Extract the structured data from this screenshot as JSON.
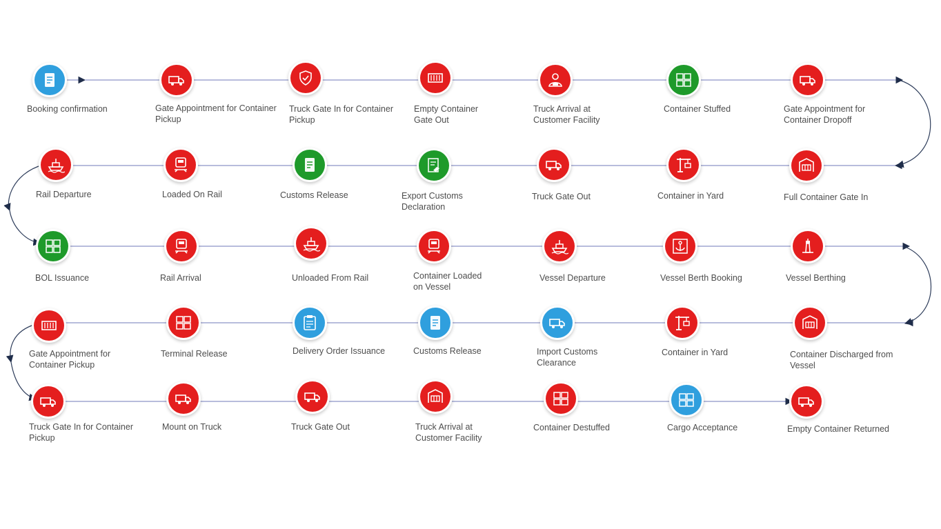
{
  "colors": {
    "red": "#e41e1e",
    "green": "#1e9a2a",
    "blue": "#2f9fde",
    "line": "#8c94c8"
  },
  "steps": [
    {
      "label": "Booking confirmation",
      "color": "blue",
      "icon": "document-icon"
    },
    {
      "label": "Gate Appointment for Container\nPickup",
      "color": "red",
      "icon": "truck-icon"
    },
    {
      "label": "Truck Gate In for Container\nPickup",
      "color": "red",
      "icon": "shield-icon"
    },
    {
      "label": "Empty Container\nGate Out",
      "color": "red",
      "icon": "container-icon"
    },
    {
      "label": "Truck Arrival at\nCustomer Facility",
      "color": "red",
      "icon": "facility-icon"
    },
    {
      "label": "Container Stuffed",
      "color": "green",
      "icon": "boxes-icon"
    },
    {
      "label": "Gate Appointment for\nContainer Dropoff",
      "color": "red",
      "icon": "truck-icon"
    },
    {
      "label": "Full Container Gate In",
      "color": "red",
      "icon": "gate-icon"
    },
    {
      "label": "Container in Yard",
      "color": "red",
      "icon": "crane-icon"
    },
    {
      "label": "Truck Gate Out",
      "color": "red",
      "icon": "truck-icon"
    },
    {
      "label": "Export Customs\nDeclaration",
      "color": "green",
      "icon": "customs-icon"
    },
    {
      "label": "Customs Release",
      "color": "green",
      "icon": "document-icon"
    },
    {
      "label": "Loaded  On Rail",
      "color": "red",
      "icon": "rail-icon"
    },
    {
      "label": "Rail Departure",
      "color": "red",
      "icon": "ship-icon"
    },
    {
      "label": "BOL Issuance",
      "color": "green",
      "icon": "boxes-icon"
    },
    {
      "label": "Rail Arrival",
      "color": "red",
      "icon": "rail-icon"
    },
    {
      "label": "Unloaded From Rail",
      "color": "red",
      "icon": "ship-icon"
    },
    {
      "label": "Container Loaded\non Vessel",
      "color": "red",
      "icon": "rail-icon"
    },
    {
      "label": "Vessel Departure",
      "color": "red",
      "icon": "ship-icon"
    },
    {
      "label": "Vessel Berth Booking",
      "color": "red",
      "icon": "anchor-icon"
    },
    {
      "label": "Vessel Berthing",
      "color": "red",
      "icon": "lighthouse-icon"
    },
    {
      "label": "Container Discharged from\nVessel",
      "color": "red",
      "icon": "gate-icon"
    },
    {
      "label": "Container in Yard",
      "color": "red",
      "icon": "crane-icon"
    },
    {
      "label": "Import Customs\nClearance",
      "color": "blue",
      "icon": "truck-icon"
    },
    {
      "label": "Customs Release",
      "color": "blue",
      "icon": "document-icon"
    },
    {
      "label": "Delivery Order Issuance",
      "color": "blue",
      "icon": "clipboard-icon"
    },
    {
      "label": "Terminal Release",
      "color": "red",
      "icon": "boxes-icon"
    },
    {
      "label": "Gate Appointment for\nContainer Pickup",
      "color": "red",
      "icon": "container-icon"
    },
    {
      "label": "Truck Gate In for Container\nPickup",
      "color": "red",
      "icon": "truck-icon"
    },
    {
      "label": "Mount on Truck",
      "color": "red",
      "icon": "truck-icon"
    },
    {
      "label": "Truck Gate Out",
      "color": "red",
      "icon": "truck-icon"
    },
    {
      "label": "Truck Arrival at\nCustomer Facility",
      "color": "red",
      "icon": "gate-icon"
    },
    {
      "label": "Container Destuffed",
      "color": "red",
      "icon": "boxes-icon"
    },
    {
      "label": "Cargo Acceptance",
      "color": "blue",
      "icon": "boxes-icon"
    },
    {
      "label": "Empty Container Returned",
      "color": "red",
      "icon": "truck-icon"
    }
  ]
}
